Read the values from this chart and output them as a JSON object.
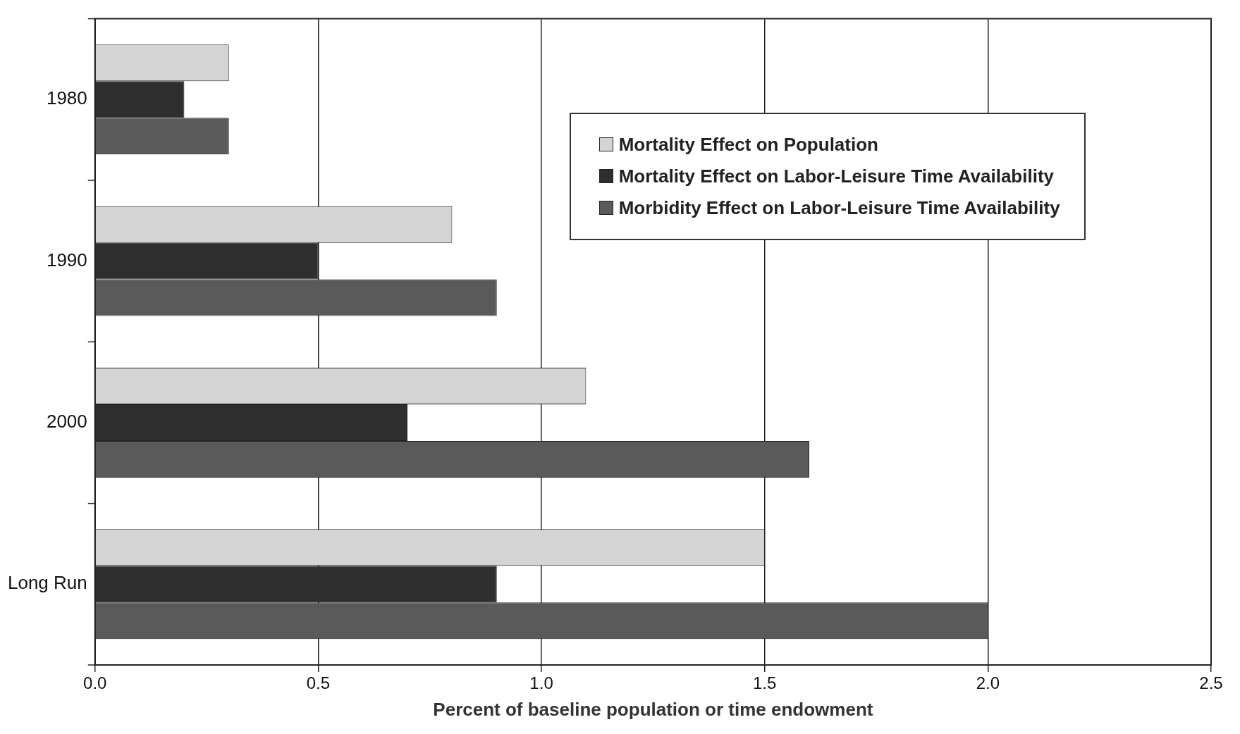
{
  "chart_data": {
    "type": "bar",
    "orientation": "horizontal",
    "xlabel": "Percent of baseline population or time endowment",
    "categories": [
      "1980",
      "1990",
      "2000",
      "Long Run"
    ],
    "series": [
      {
        "name": "Mortality Effect on Population",
        "color": "#d4d4d4",
        "values": [
          0.3,
          0.8,
          1.1,
          1.5
        ]
      },
      {
        "name": "Mortality Effect on Labor-Leisure Time Availability",
        "color": "#2e2e2e",
        "values": [
          0.2,
          0.5,
          0.7,
          0.9
        ]
      },
      {
        "name": "Morbidity Effect on Labor-Leisure Time Availability",
        "color": "#5a5a5a",
        "values": [
          0.3,
          0.9,
          1.6,
          2.0
        ]
      }
    ],
    "xlim": [
      0,
      2.5
    ],
    "xticks": [
      {
        "value": 0,
        "label": "0.0"
      },
      {
        "value": 0.5,
        "label": "0.5"
      },
      {
        "value": 1,
        "label": "1.0"
      },
      {
        "value": 1.5,
        "label": "1.5"
      },
      {
        "value": 2,
        "label": "2.0"
      },
      {
        "value": 2.5,
        "label": "2.5"
      }
    ],
    "grid": "x",
    "legend": "top right"
  }
}
